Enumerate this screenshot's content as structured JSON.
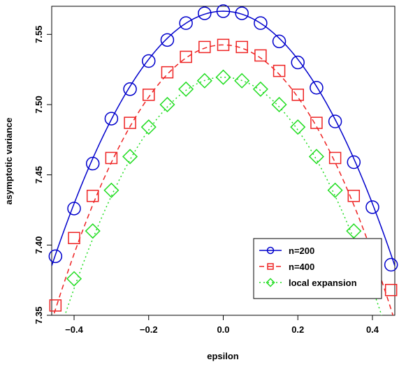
{
  "chart_data": {
    "type": "line",
    "title": "",
    "xlabel": "epsilon",
    "ylabel": "asymptotic variance",
    "xlim": [
      -0.46,
      0.46
    ],
    "ylim": [
      7.35,
      7.57
    ],
    "x_ticks": [
      -0.4,
      -0.2,
      0.0,
      0.2,
      0.4
    ],
    "x_tick_labels": [
      "−0.4",
      "−0.2",
      "0.0",
      "0.2",
      "0.4"
    ],
    "y_ticks": [
      7.35,
      7.4,
      7.45,
      7.5,
      7.55
    ],
    "y_tick_labels": [
      "7.35",
      "7.40",
      "7.45",
      "7.50",
      "7.55"
    ],
    "grid": false,
    "legend_position": "bottom-right",
    "series": [
      {
        "name": "n=200",
        "color": "#0000CC",
        "line_style": "solid",
        "marker": "circle",
        "curve": {
          "center": 7.5665,
          "k": 0.8565
        },
        "x": [
          -0.45,
          -0.4,
          -0.35,
          -0.3,
          -0.25,
          -0.2,
          -0.15,
          -0.1,
          -0.05,
          0.0,
          0.05,
          0.1,
          0.15,
          0.2,
          0.25,
          0.3,
          0.35,
          0.4,
          0.45
        ],
        "values": [
          7.392,
          7.426,
          7.458,
          7.49,
          7.511,
          7.531,
          7.546,
          7.558,
          7.565,
          7.5665,
          7.565,
          7.558,
          7.545,
          7.53,
          7.512,
          7.488,
          7.459,
          7.427,
          7.386
        ]
      },
      {
        "name": "n=400",
        "color": "#EE2222",
        "line_style": "dashed",
        "marker": "square",
        "curve": {
          "center": 7.5425,
          "k": 0.93
        },
        "x": [
          -0.45,
          -0.4,
          -0.35,
          -0.3,
          -0.25,
          -0.2,
          -0.15,
          -0.1,
          -0.05,
          0.0,
          0.05,
          0.1,
          0.15,
          0.2,
          0.25,
          0.3,
          0.35,
          0.4,
          0.45
        ],
        "values": [
          7.357,
          7.405,
          7.435,
          7.462,
          7.487,
          7.507,
          7.523,
          7.534,
          7.541,
          7.5425,
          7.541,
          7.535,
          7.524,
          7.507,
          7.487,
          7.462,
          7.435,
          7.398,
          7.368
        ]
      },
      {
        "name": "local expansion",
        "color": "#22DD22",
        "line_style": "dotted",
        "marker": "diamond",
        "curve": {
          "center": 7.5195,
          "k": 0.94
        },
        "x": [
          -0.45,
          -0.4,
          -0.35,
          -0.3,
          -0.25,
          -0.2,
          -0.15,
          -0.1,
          -0.05,
          0.0,
          0.05,
          0.1,
          0.15,
          0.2,
          0.25,
          0.3,
          0.35,
          0.4
        ],
        "values": [
          null,
          7.376,
          7.41,
          7.439,
          7.463,
          7.484,
          7.5,
          7.511,
          7.517,
          7.5195,
          7.517,
          7.511,
          7.5,
          7.484,
          7.463,
          7.439,
          7.41,
          7.376
        ]
      }
    ]
  }
}
